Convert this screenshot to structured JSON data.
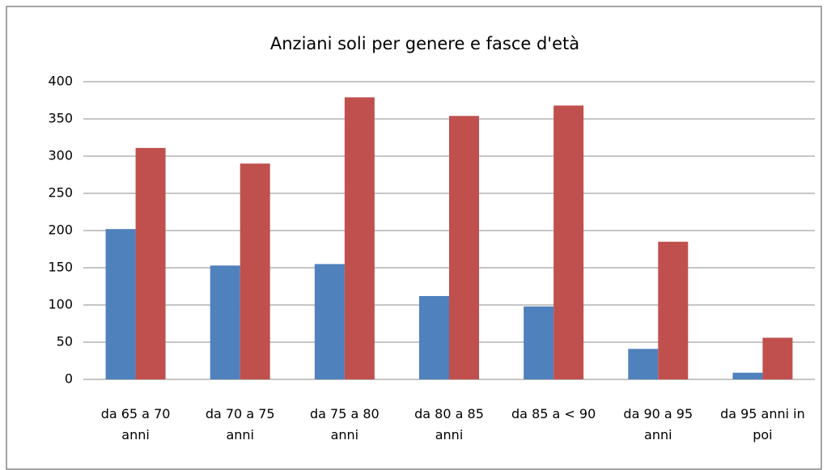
{
  "chart_data": {
    "type": "bar",
    "title": "Anziani soli per genere e fasce d'età",
    "categories": [
      "da 65 a 70 anni",
      "da 70 a 75 anni",
      "da 75 a 80 anni",
      "da 80 a 85 anni",
      "da 85 a < 90",
      "da 90 a 95 anni",
      "da 95 anni in poi"
    ],
    "series": [
      {
        "color": "#4f81bd",
        "values": [
          202,
          153,
          155,
          112,
          98,
          41,
          9
        ]
      },
      {
        "color": "#c0504d",
        "values": [
          311,
          290,
          379,
          354,
          368,
          185,
          56
        ]
      }
    ],
    "ylim": [
      0,
      400
    ],
    "yticks": [
      0,
      50,
      100,
      150,
      200,
      250,
      300,
      350,
      400
    ],
    "grid": true
  }
}
